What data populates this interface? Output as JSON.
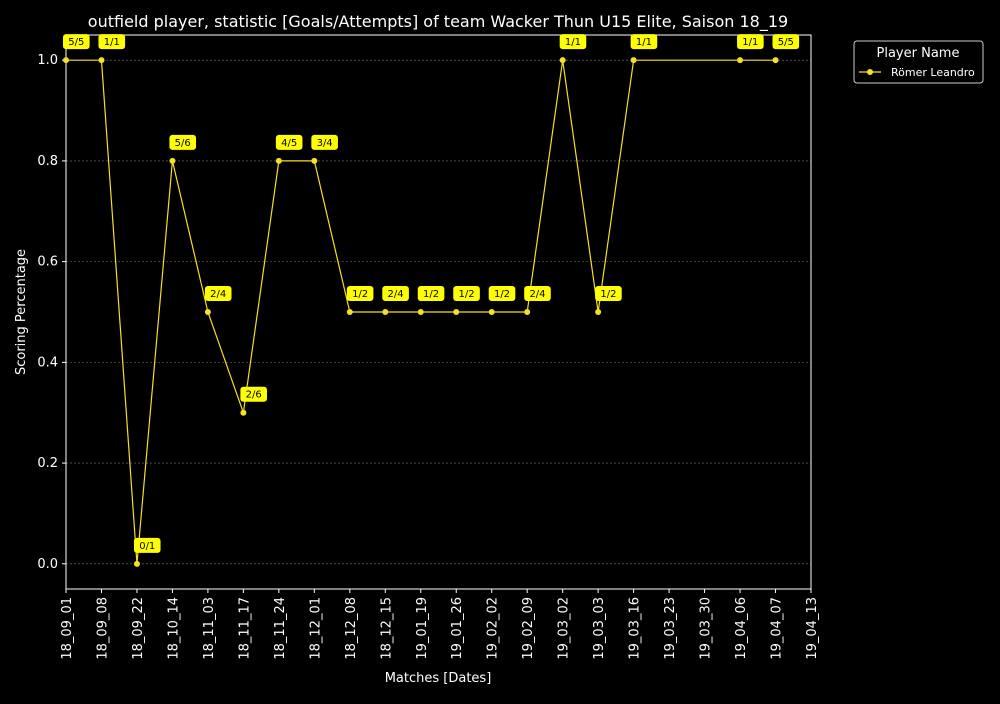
{
  "chart_data": {
    "type": "line",
    "title": "outfield player, statistic [Goals/Attempts] of team Wacker Thun U15 Elite, Saison 18_19",
    "xlabel": "Matches [Dates]",
    "ylabel": "Scoring Percentage",
    "ylim": [
      -0.05,
      1.05
    ],
    "yticks": [
      "0.0",
      "0.2",
      "0.4",
      "0.6",
      "0.8",
      "1.0"
    ],
    "categories": [
      "18_09_01",
      "18_09_08",
      "18_09_22",
      "18_10_14",
      "18_11_03",
      "18_11_17",
      "18_11_24",
      "18_12_01",
      "18_12_08",
      "18_12_15",
      "19_01_19",
      "19_01_26",
      "19_02_02",
      "19_02_09",
      "19_03_02",
      "19_03_03",
      "19_03_16",
      "19_03_23",
      "19_03_30",
      "19_04_06",
      "19_04_07",
      "19_04_13"
    ],
    "grid": true,
    "legend": {
      "title": "Player Name",
      "position": "outside-top-right"
    },
    "series": [
      {
        "name": "Römer Leandro",
        "color": "#f5e025",
        "values": [
          1.0,
          1.0,
          0.0,
          0.8,
          0.5,
          0.3,
          0.8,
          0.8,
          0.5,
          0.5,
          0.5,
          0.5,
          0.5,
          0.5,
          1.0,
          0.5,
          1.0,
          null,
          null,
          1.0,
          1.0,
          null
        ],
        "labels": [
          "5/5",
          "1/1",
          "0/1",
          "5/6",
          "2/4",
          "2/6",
          "4/5",
          "3/4",
          "1/2",
          "2/4",
          "1/2",
          "1/2",
          "1/2",
          "2/4",
          "1/1",
          "1/2",
          "1/1",
          "",
          "",
          "1/1",
          "5/5",
          ""
        ]
      }
    ]
  }
}
